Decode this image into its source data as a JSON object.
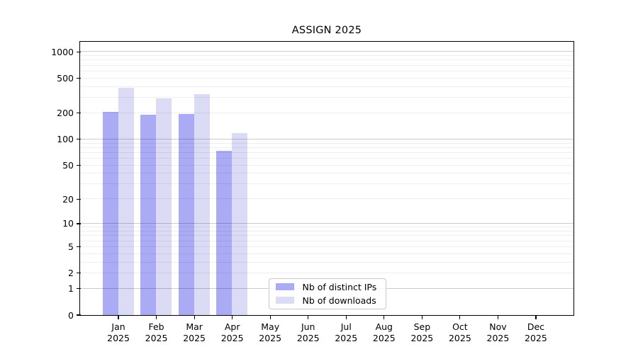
{
  "chart_data": {
    "type": "bar",
    "title": "ASSIGN 2025",
    "categories": [
      "Jan",
      "Feb",
      "Mar",
      "Apr",
      "May",
      "Jun",
      "Jul",
      "Aug",
      "Sep",
      "Oct",
      "Nov",
      "Dec"
    ],
    "year_label": "2025",
    "series": [
      {
        "name": "Nb of distinct IPs",
        "color": "#aaaaf5",
        "values": [
          205,
          190,
          195,
          73,
          null,
          null,
          null,
          null,
          null,
          null,
          null,
          null
        ]
      },
      {
        "name": "Nb of downloads",
        "color": "#dbdbf6",
        "values": [
          390,
          290,
          330,
          117,
          null,
          null,
          null,
          null,
          null,
          null,
          null,
          null
        ]
      }
    ],
    "yscale": "log1p",
    "ylim": [
      0,
      1290
    ],
    "yticks": [
      1000,
      500,
      200,
      100,
      50,
      20,
      10,
      5,
      2,
      1,
      0
    ],
    "grid": {
      "orientation": "horizontal",
      "major_at": [
        1,
        10,
        100,
        1000
      ],
      "minor_multiples": [
        2,
        3,
        4,
        5,
        6,
        7,
        8,
        9
      ]
    },
    "legend_position": "inside-bottom-center-left",
    "axis_color": "#000000",
    "major_grid_color": "rgba(0,0,0,0.20)",
    "minor_grid_color": "rgba(0,0,0,0.065)"
  }
}
